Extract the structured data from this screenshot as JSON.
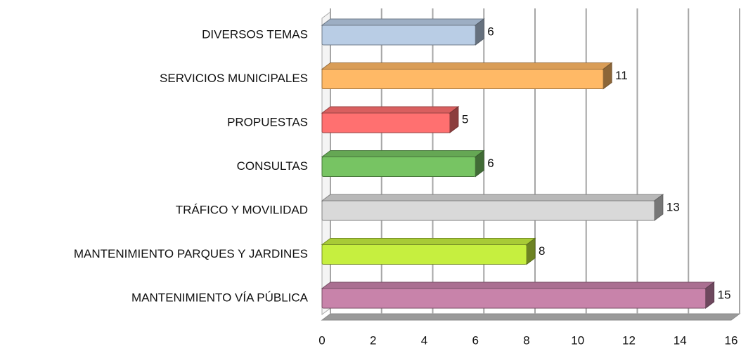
{
  "chart_data": {
    "type": "bar3d_horizontal",
    "categories": [
      "DIVERSOS TEMAS",
      "SERVICIOS MUNICIPALES",
      "PROPUESTAS",
      "CONSULTAS",
      "TRÁFICO Y MOVILIDAD",
      "MANTENIMIENTO PARQUES Y JARDINES",
      "MANTENIMIENTO VÍA PÚBLICA"
    ],
    "values": [
      6,
      11,
      5,
      6,
      13,
      8,
      15
    ],
    "colors": [
      "#b9cde5",
      "#ffb966",
      "#ff7070",
      "#77c463",
      "#d9d9d9",
      "#c6ef3f",
      "#c883aa"
    ],
    "xlim": [
      0,
      16
    ],
    "xticks": [
      0,
      2,
      4,
      6,
      8,
      10,
      12,
      14,
      16
    ],
    "grid": true
  }
}
